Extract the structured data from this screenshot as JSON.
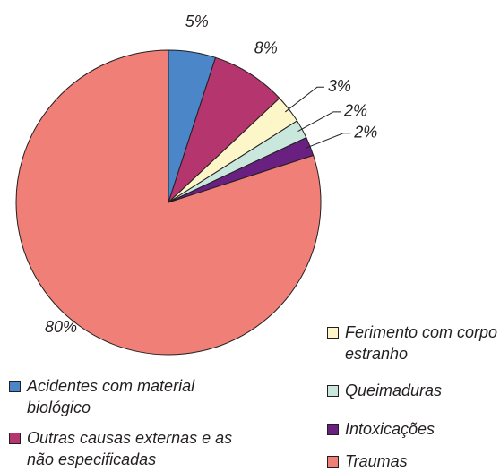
{
  "chart_data": {
    "type": "pie",
    "categories": [
      "Acidentes com material biológico",
      "Outras causas externas e as não especificadas",
      "Ferimento com corpo estranho",
      "Queimaduras",
      "Intoxicações",
      "Traumas"
    ],
    "values": [
      5,
      8,
      3,
      2,
      2,
      80
    ],
    "value_labels": [
      "5%",
      "8%",
      "3%",
      "2%",
      "2%",
      "80%"
    ],
    "colors": [
      "#4a86c8",
      "#b5356e",
      "#fdf6c8",
      "#c9e7dd",
      "#6a2080",
      "#f08077"
    ]
  }
}
